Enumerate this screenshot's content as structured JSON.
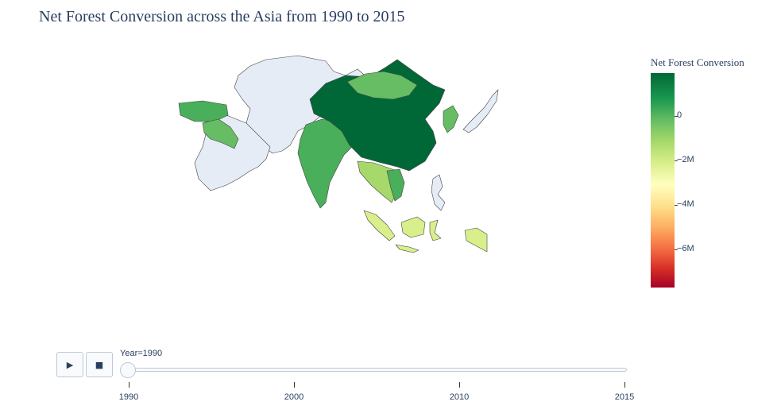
{
  "title": "Net Forest Conversion across the Asia from 1990 to 2015",
  "colorbar": {
    "title": "Net Forest Conversion",
    "colorscale": "RdYlGn",
    "ticks": [
      "0",
      "−2M",
      "−4M",
      "−6M"
    ]
  },
  "controls": {
    "play_icon": "▶",
    "stop_icon": "■"
  },
  "slider": {
    "current_label": "Year=1990",
    "ticks": [
      "1990",
      "2000",
      "2010",
      "2015"
    ]
  },
  "map": {
    "region": "asia",
    "colors": {
      "no_data": "#e5ecf6",
      "china": "#006837",
      "light_green": "#66bd63",
      "mid_green": "#4aaf5b",
      "yellow_green": "#a6d96a",
      "pale": "#d9ef8b"
    }
  }
}
